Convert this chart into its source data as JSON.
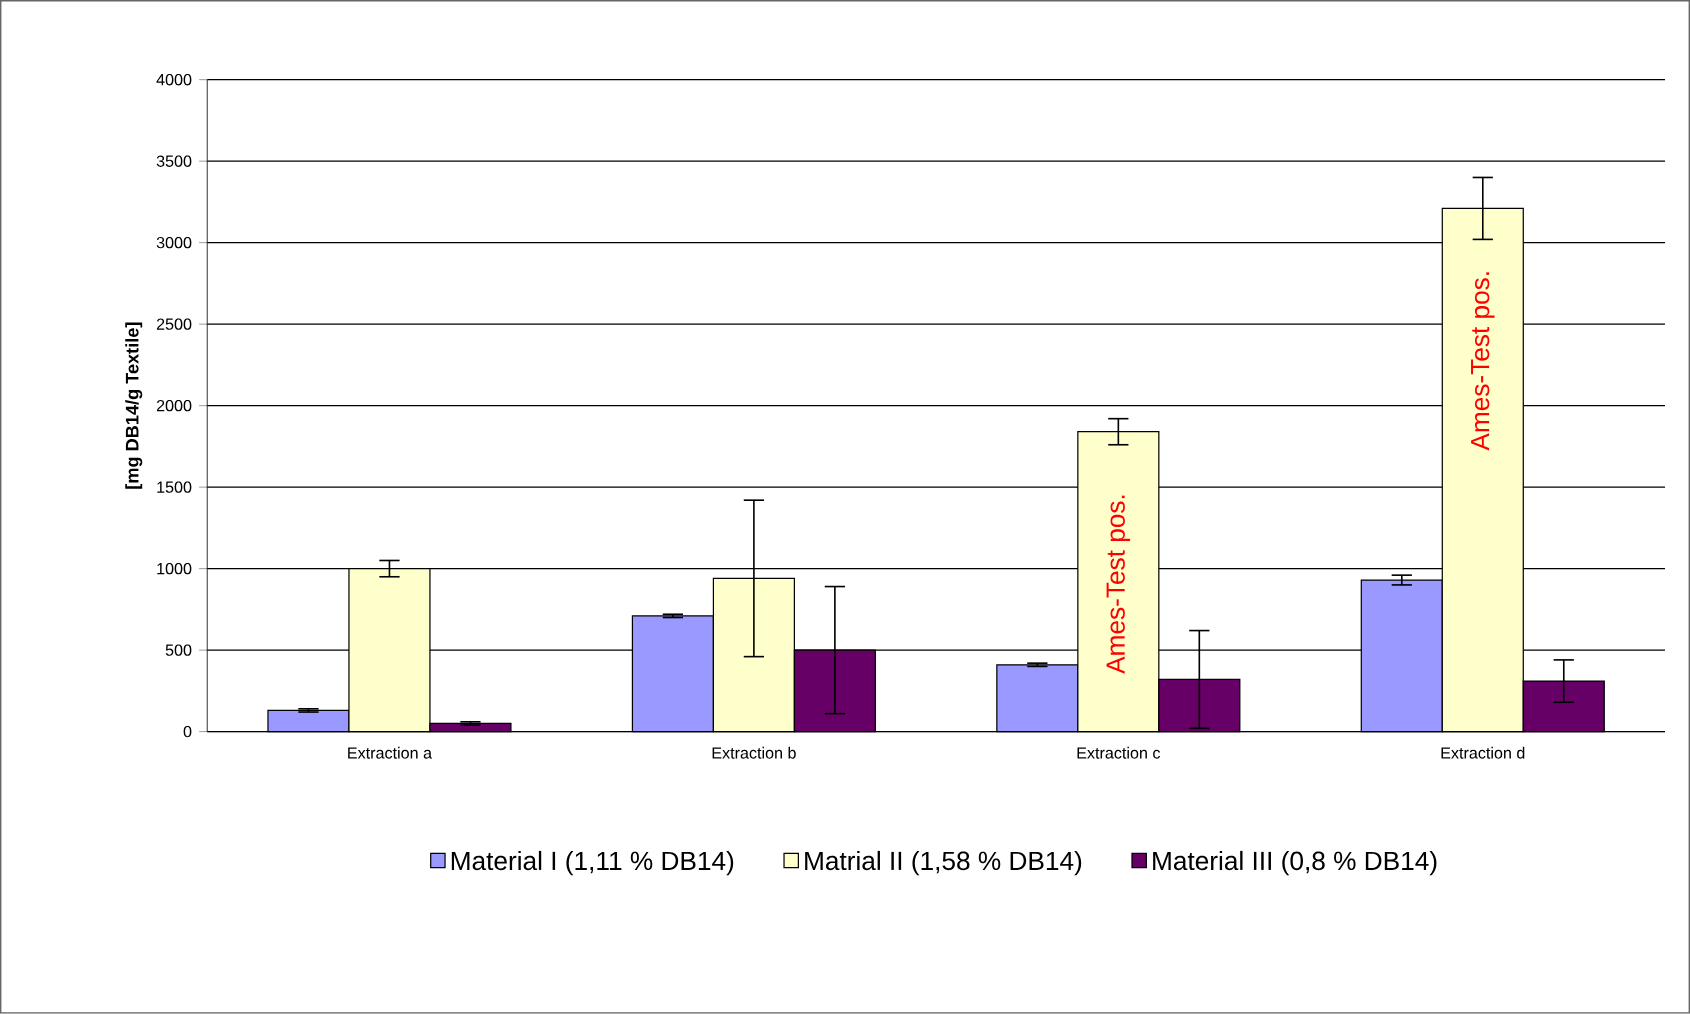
{
  "chart_data": {
    "type": "bar",
    "ylabel": "**[mg DB14/g Textile]**",
    "categories": [
      "Extraction a",
      "Extraction b",
      "Extraction c",
      "Extraction d"
    ],
    "series": [
      {
        "name": "Material I (1,11 % DB14)",
        "color": "#9999ff",
        "values": [
          130,
          710,
          410,
          930
        ],
        "errors": [
          10,
          10,
          10,
          30
        ]
      },
      {
        "name": "Matrial II (1,58 % DB14)",
        "color": "#ffffcc",
        "values": [
          1000,
          940,
          1840,
          3210
        ],
        "errors": [
          50,
          480,
          80,
          190
        ]
      },
      {
        "name": "Material III (0,8 % DB14)",
        "color": "#660066",
        "values": [
          50,
          500,
          320,
          310
        ],
        "errors": [
          10,
          390,
          300,
          130
        ]
      }
    ],
    "annotations": [
      {
        "text": "Ames-Test pos.",
        "x": "Extraction c",
        "y": 1840
      },
      {
        "text": "Ames-Test pos.",
        "x": "Extraction d",
        "y": 3210
      }
    ],
    "ylim": [
      0,
      4000
    ],
    "yticks": [
      0,
      500,
      1000,
      1500,
      2000,
      2500,
      3000,
      3500,
      4000
    ],
    "grid": "y",
    "legend": "bottom"
  }
}
